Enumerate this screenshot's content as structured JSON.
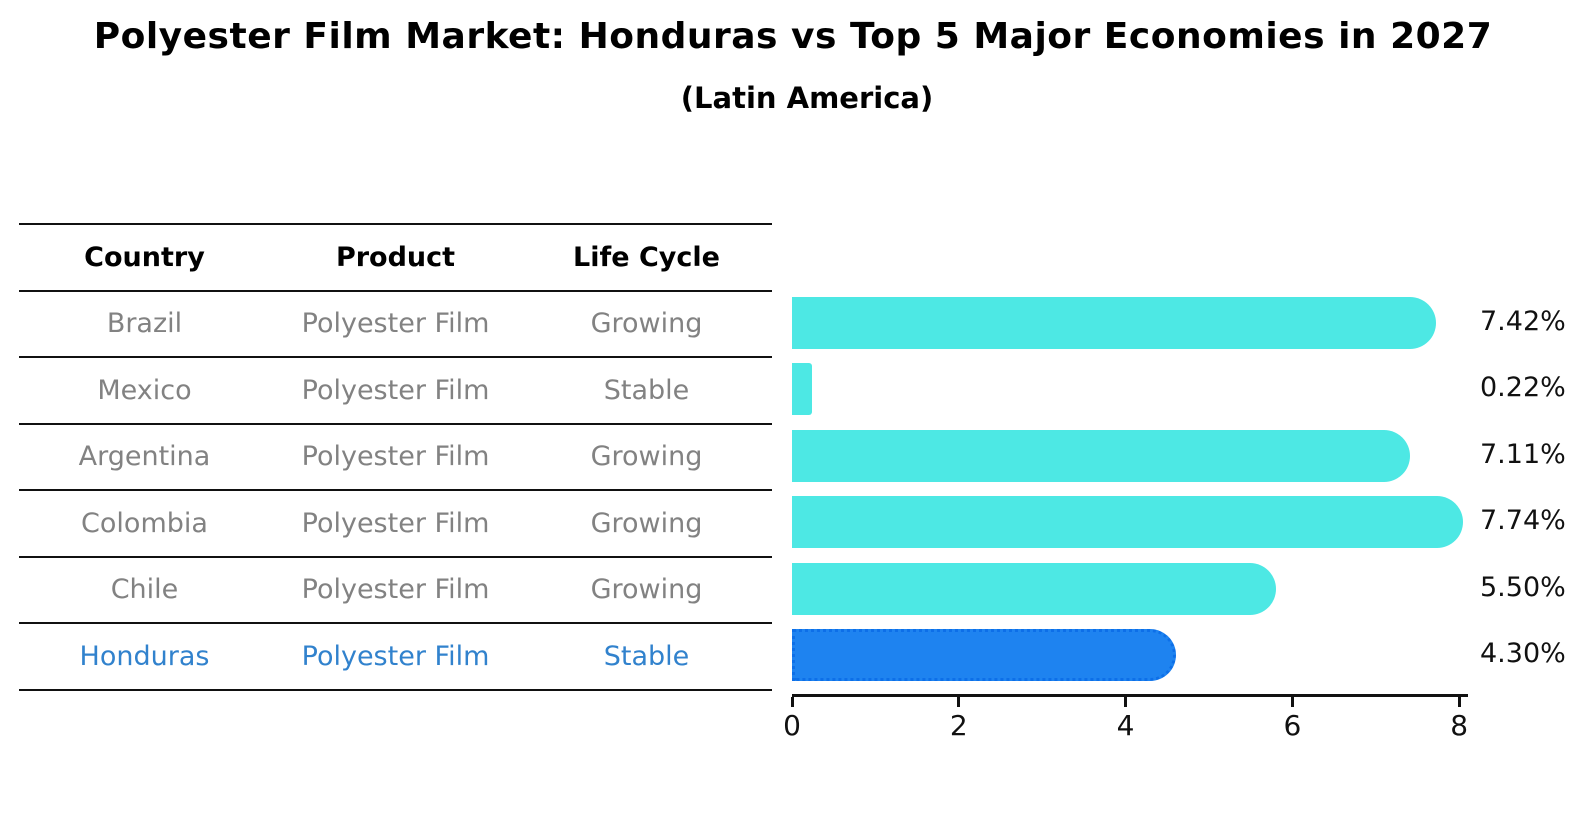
{
  "title": "Polyester Film Market: Honduras vs Top 5 Major Economies in 2027",
  "subtitle": "(Latin America)",
  "table": {
    "headers": [
      "Country",
      "Product",
      "Life Cycle"
    ],
    "rows": [
      {
        "country": "Brazil",
        "product": "Polyester Film",
        "life_cycle": "Growing",
        "highlighted": false
      },
      {
        "country": "Mexico",
        "product": "Polyester Film",
        "life_cycle": "Stable",
        "highlighted": false
      },
      {
        "country": "Argentina",
        "product": "Polyester Film",
        "life_cycle": "Growing",
        "highlighted": false
      },
      {
        "country": "Colombia",
        "product": "Polyester Film",
        "life_cycle": "Growing",
        "highlighted": false
      },
      {
        "country": "Chile",
        "product": "Polyester Film",
        "life_cycle": "Growing",
        "highlighted": false
      },
      {
        "country": "Honduras",
        "product": "Polyester Film",
        "life_cycle": "Stable",
        "highlighted": true
      }
    ]
  },
  "chart_data": {
    "type": "bar",
    "orientation": "horizontal",
    "title": "Polyester Film Market: Honduras vs Top 5 Major Economies in 2027",
    "subtitle": "(Latin America)",
    "categories": [
      "Brazil",
      "Mexico",
      "Argentina",
      "Colombia",
      "Chile",
      "Honduras"
    ],
    "values": [
      7.42,
      0.22,
      7.11,
      7.74,
      5.5,
      4.3
    ],
    "value_labels": [
      "7.42%",
      "0.22%",
      "7.11%",
      "7.74%",
      "5.50%",
      "4.30%"
    ],
    "xlim": [
      0,
      8
    ],
    "xticks": [
      0,
      2,
      4,
      6,
      8
    ],
    "grid": false,
    "legend": false,
    "bar_color": "#4de8e4",
    "highlight_index": 5,
    "highlight_bar_color": "#1e83f0",
    "highlight_border_color": "#0d6fe8",
    "highlight_text_color": "#3182cd",
    "text_color": "#000000",
    "muted_text_color": "#828282"
  }
}
